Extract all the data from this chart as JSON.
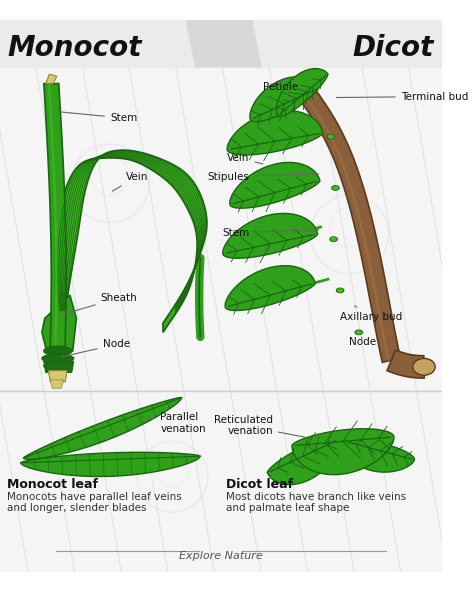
{
  "title_left": "Monocot",
  "title_right": "Dicot",
  "bg_color": "#f7f7f7",
  "green_dark": "#1a6610",
  "green_mid": "#2ea01a",
  "green_light": "#4cc030",
  "green_bright": "#55cc30",
  "brown": "#8B5E3C",
  "brown_dark": "#5a3a1a",
  "brown_light": "#a07848",
  "brown_end": "#c8a060",
  "yellow_tip": "#d4cc80",
  "label_color": "#222222",
  "explore_text": "Explore Nature",
  "monocot_leaf_title": "Monocot leaf",
  "monocot_leaf_desc1": "Monocots have parallel leaf veins",
  "monocot_leaf_desc2": "and longer, slender blades",
  "dicot_leaf_title": "Dicot leaf",
  "dicot_leaf_desc1": "Most dicots have branch like veins",
  "dicot_leaf_desc2": "and palmate leaf shape",
  "parallel_venation": "Parallel\nvenation",
  "reticulated_venation": "Reticulated\nvenation"
}
